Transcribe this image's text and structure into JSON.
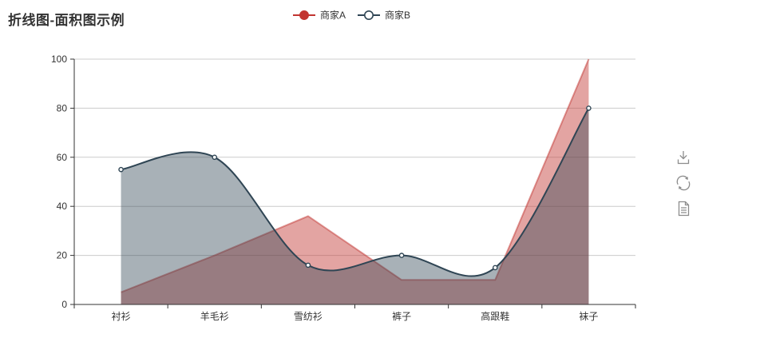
{
  "title": "折线图-面积图示例",
  "legend": {
    "items": [
      {
        "label": "商家A",
        "color": "#c23531",
        "marker": "filled-circle"
      },
      {
        "label": "商家B",
        "color": "#2f4554",
        "marker": "empty-circle"
      }
    ]
  },
  "toolbox": {
    "color": "#8c8c8c",
    "icons": [
      {
        "name": "save-as-image",
        "glyph": "download-icon"
      },
      {
        "name": "restore",
        "glyph": "refresh-icon"
      },
      {
        "name": "data-view",
        "glyph": "document-icon"
      }
    ]
  },
  "chart_data": {
    "type": "line",
    "title": "折线图-面积图示例",
    "categories": [
      "衬衫",
      "羊毛衫",
      "雪纺衫",
      "裤子",
      "高跟鞋",
      "袜子"
    ],
    "series": [
      {
        "id": "a",
        "name": "商家A",
        "values": [
          5,
          20,
          36,
          10,
          10,
          100
        ],
        "color": "#c23531",
        "smooth": false,
        "area": true,
        "area_opacity": 0.45,
        "line_opacity": 0.5,
        "show_symbol": false
      },
      {
        "id": "b",
        "name": "商家B",
        "values": [
          55,
          60,
          16,
          20,
          15,
          80
        ],
        "color": "#2f4554",
        "smooth": true,
        "area": true,
        "area_opacity": 0.42,
        "line_opacity": 1,
        "show_symbol": true,
        "symbol": "empty-circle"
      }
    ],
    "xlabel": "",
    "ylabel": "",
    "ylim": [
      0,
      100
    ],
    "y_ticks": [
      0,
      20,
      40,
      60,
      80,
      100
    ],
    "grid": true,
    "grid_color": "#cccccc",
    "axis_color": "#333333",
    "label_color": "#333333",
    "legend_position": "top-center"
  }
}
